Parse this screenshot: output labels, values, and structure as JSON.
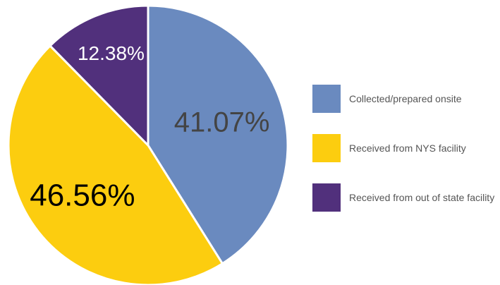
{
  "chart_data": {
    "type": "pie",
    "categories": [
      "Collected/prepared onsite",
      "Received from NYS facility",
      "Received from out of state facility"
    ],
    "values": [
      41.07,
      46.56,
      12.38
    ],
    "value_labels": [
      "41.07%",
      "46.56%",
      "12.38%"
    ],
    "colors": [
      "#6a8abf",
      "#fccd0f",
      "#51307c"
    ],
    "legend": "right"
  }
}
